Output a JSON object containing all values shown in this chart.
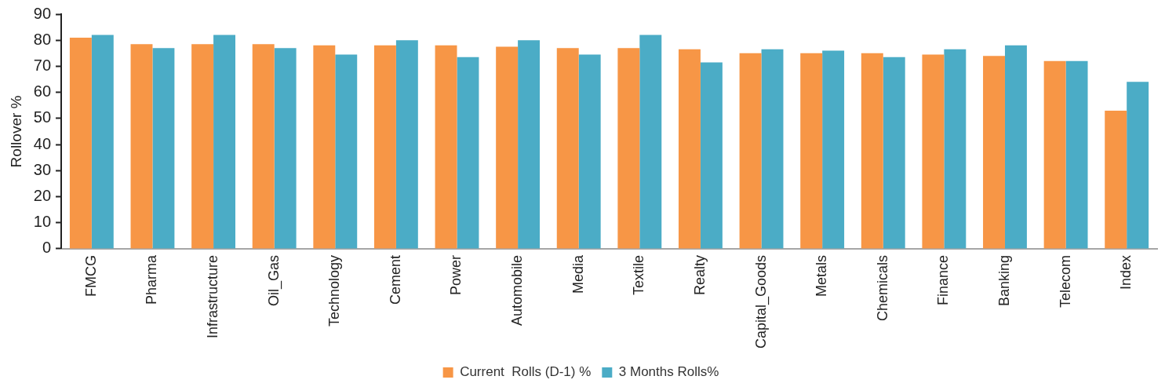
{
  "chart_data": {
    "type": "bar",
    "ylabel": "Rollover %",
    "categories": [
      "FMCG",
      "Pharma",
      "Infrastructure",
      "Oil_Gas",
      "Technology",
      "Cement",
      "Power",
      "Automobile",
      "Media",
      "Textile",
      "Realty",
      "Capital_Goods",
      "Metals",
      "Chemicals",
      "Finance",
      "Banking",
      "Telecom",
      "Index"
    ],
    "series": [
      {
        "name": "Current  Rolls (D-1) %",
        "color": "#f79646",
        "values": [
          81,
          78.5,
          78.5,
          78.5,
          78,
          78,
          78,
          77.5,
          77,
          77,
          76.5,
          75,
          75,
          75,
          74.5,
          74,
          72,
          53
        ]
      },
      {
        "name": "3 Months Rolls%",
        "color": "#4bacc6",
        "values": [
          82,
          77,
          82,
          77,
          74.5,
          80,
          73.5,
          80,
          74.5,
          82,
          71.5,
          76.5,
          76,
          73.5,
          76.5,
          78,
          72,
          64
        ]
      }
    ],
    "ylim": [
      0,
      90
    ],
    "yticks": [
      0,
      10,
      20,
      30,
      40,
      50,
      60,
      70,
      80,
      90
    ],
    "grid": false,
    "legend": "bottom"
  }
}
